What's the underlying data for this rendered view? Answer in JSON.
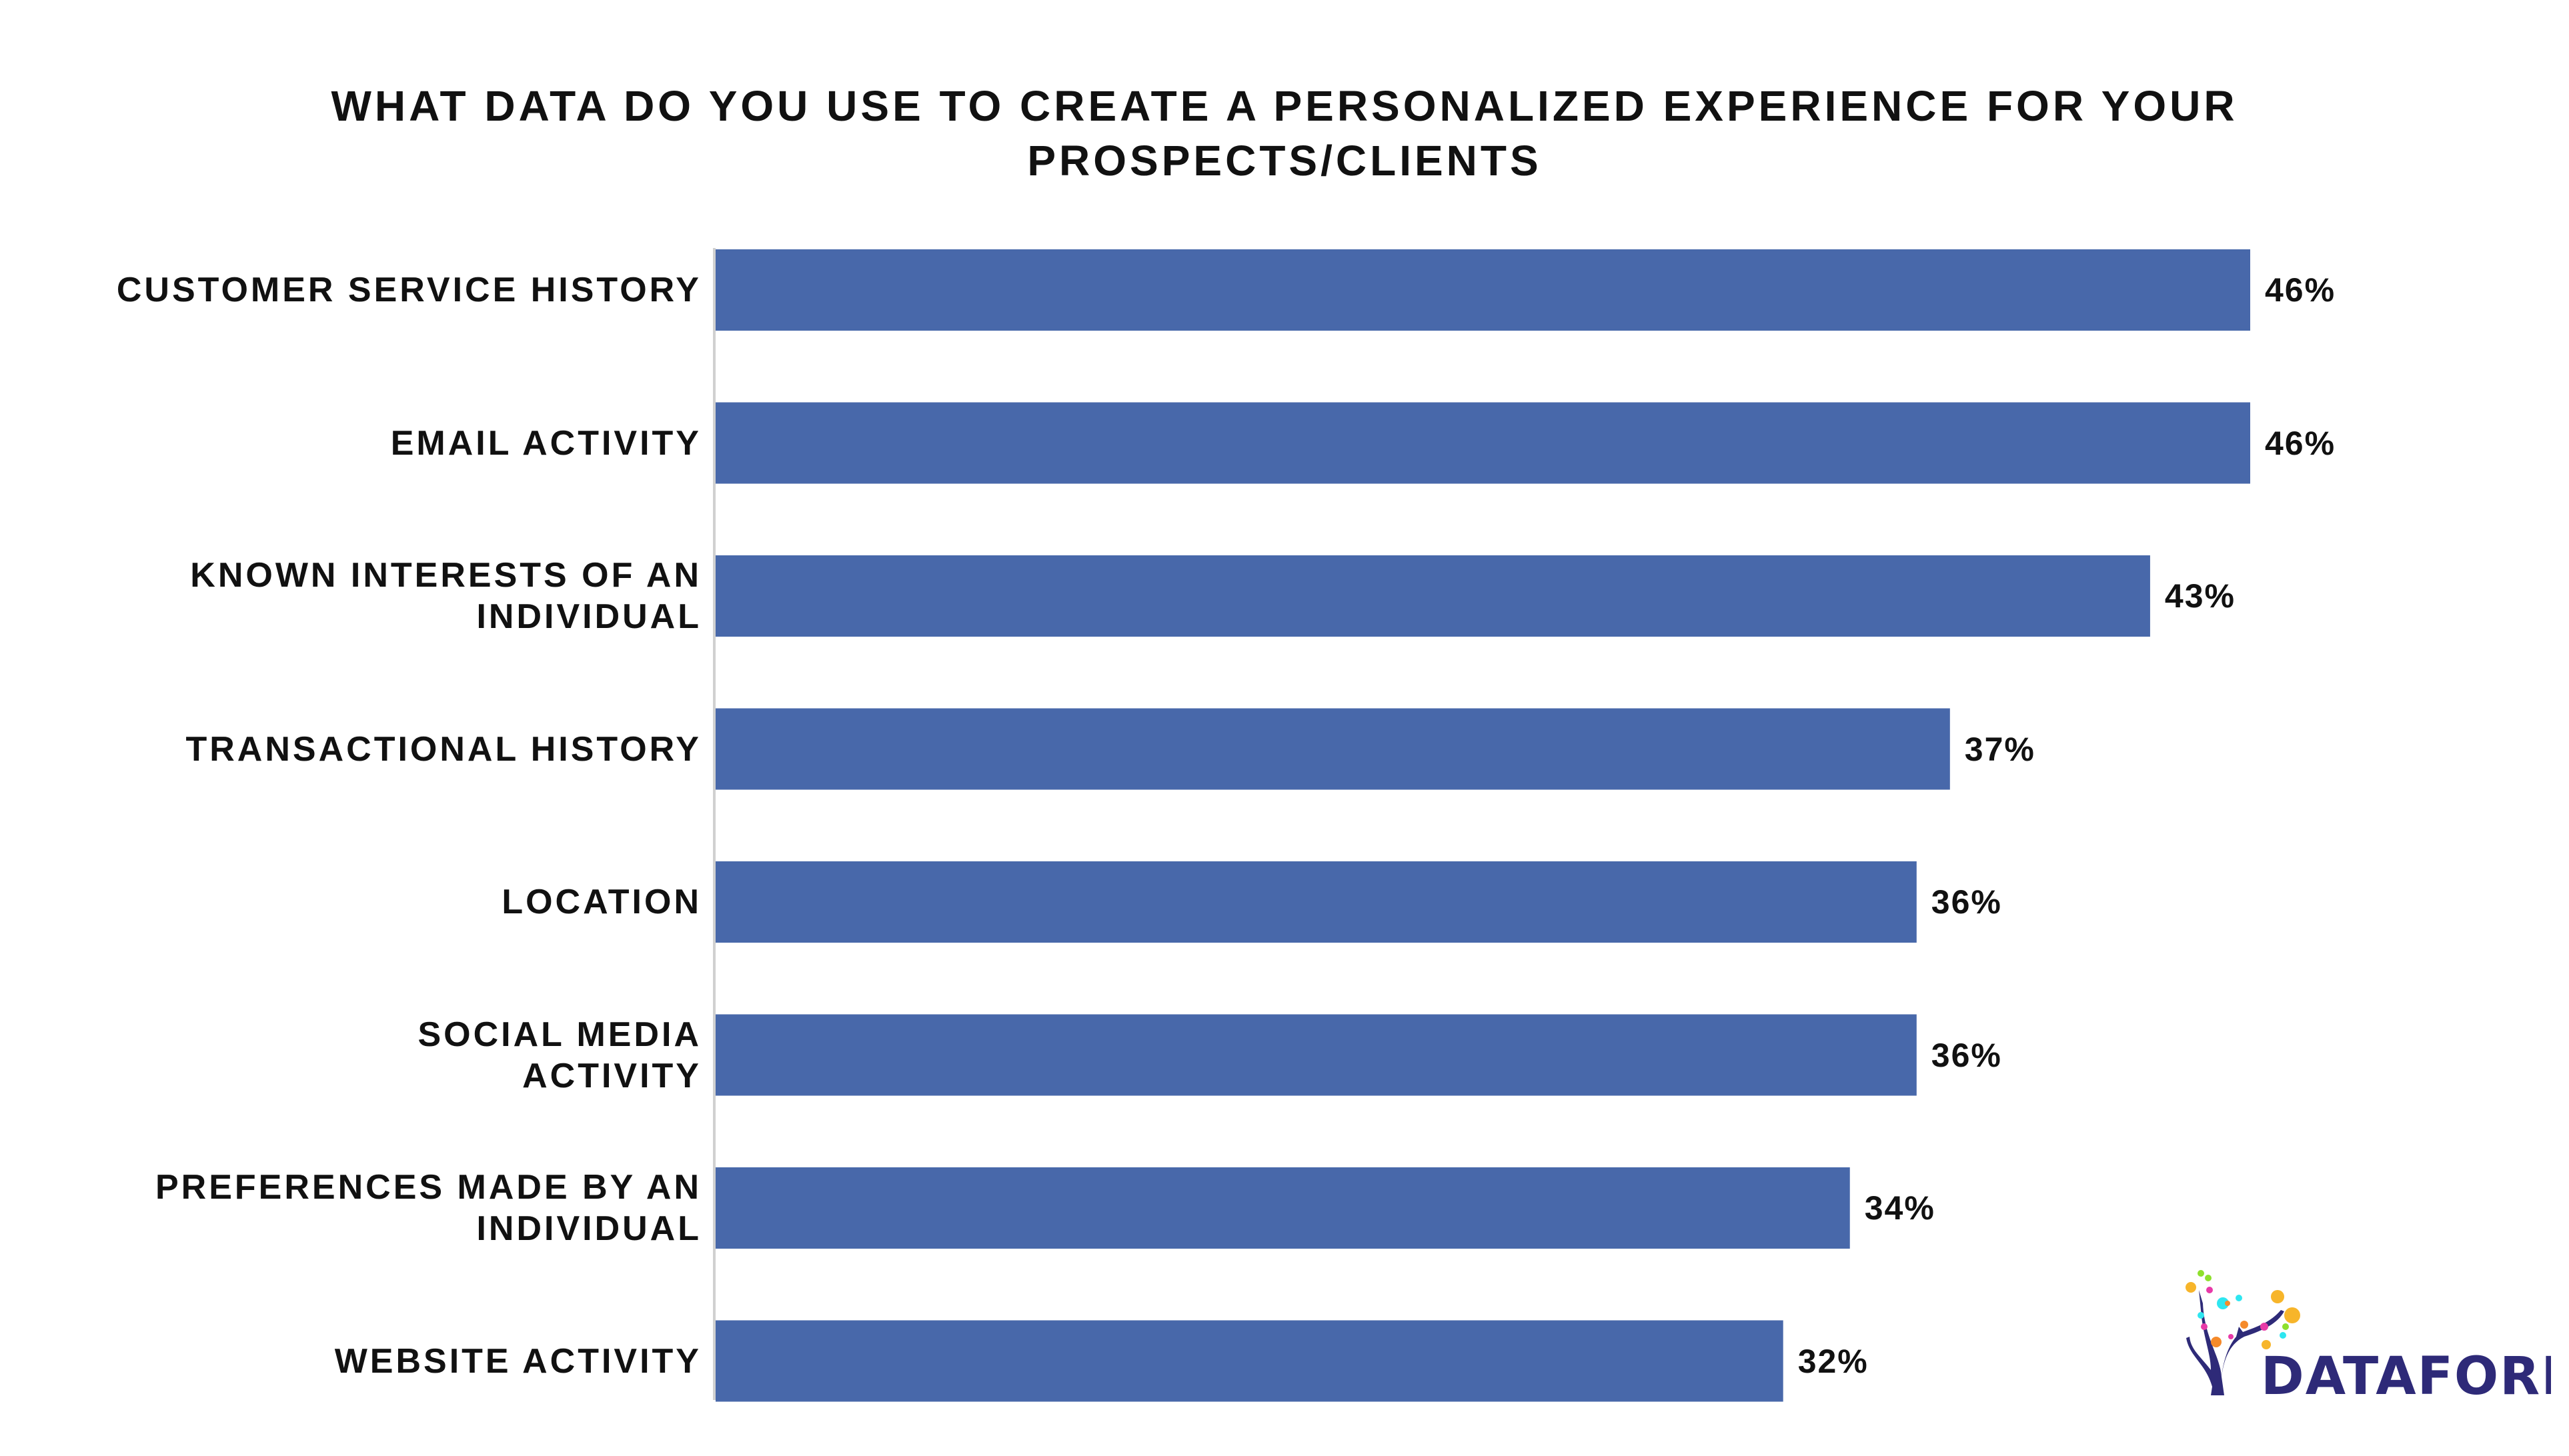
{
  "chart_data": {
    "type": "bar",
    "orientation": "horizontal",
    "title": "WHAT DATA DO YOU USE TO CREATE A PERSONALIZED EXPERIENCE FOR YOUR PROSPECTS/CLIENTS",
    "title_lines": [
      "WHAT DATA DO YOU USE TO CREATE A PERSONALIZED EXPERIENCE FOR YOUR",
      "PROSPECTS/CLIENTS"
    ],
    "categories": [
      [
        "CUSTOMER SERVICE HISTORY"
      ],
      [
        "EMAIL ACTIVITY"
      ],
      [
        "KNOWN INTERESTS OF AN",
        "INDIVIDUAL"
      ],
      [
        "TRANSACTIONAL HISTORY"
      ],
      [
        "LOCATION"
      ],
      [
        "SOCIAL MEDIA",
        "ACTIVITY"
      ],
      [
        "PREFERENCES MADE BY AN",
        "INDIVIDUAL"
      ],
      [
        "WEBSITE ACTIVITY"
      ]
    ],
    "values": [
      46,
      46,
      43,
      37,
      36,
      36,
      34,
      32
    ],
    "value_labels": [
      "46%",
      "46%",
      "43%",
      "37%",
      "36%",
      "36%",
      "34%",
      "32%"
    ],
    "unit": "%",
    "xlim": [
      0,
      46
    ],
    "grid": false,
    "legend": "none",
    "bar_color": "#4868AA"
  },
  "logo": {
    "text": "DATAFOREST",
    "color": "#2E2A78"
  }
}
